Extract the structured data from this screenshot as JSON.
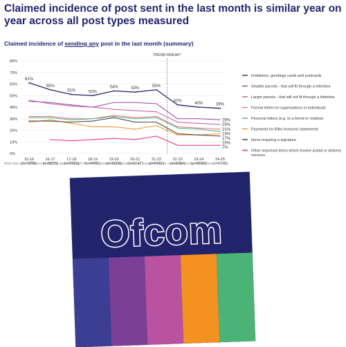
{
  "page_title": "Claimed incidence of post sent in the last month is similar year on year across all post types measured",
  "chart_subtitle": {
    "prefix": "Claimed incidence of ",
    "emphasis": "sending any",
    "suffix": " post in the last month (summary)"
  },
  "chart_data": {
    "type": "line",
    "title": "Claimed incidence of sending any post in the last month (summary)",
    "x": [
      "15-16",
      "16-17",
      "17-18",
      "18-19",
      "19-20",
      "20-21",
      "21-22",
      "22-23",
      "23-24",
      "24-25"
    ],
    "x_subs": [
      "(n=3205)",
      "(n=6015)",
      "(n=5861)",
      "(n=6981)",
      "(n=5006)",
      "(n=5147)",
      "(n=5161)",
      "(n=6664)",
      "(n=6160)",
      "(n=6168)"
    ],
    "ylim": [
      0,
      80
    ],
    "yticks": [
      "0%",
      "10%",
      "20%",
      "30%",
      "40%",
      "50%",
      "60%",
      "70%",
      "80%"
    ],
    "y_unit": "%",
    "grid": true,
    "legend_position": "right",
    "annotation": "TREND BREAK*",
    "trend_break_between": [
      "21-22",
      "22-23"
    ],
    "series": [
      {
        "name": "Invitations, greetings cards and postcards",
        "color": "#22246b",
        "values": [
          61,
          55,
          51,
          50,
          54,
          53,
          55,
          42,
          40,
          39
        ],
        "labels": [
          "61%",
          "55%",
          "51%",
          "50%",
          "54%",
          "53%",
          "55%",
          "42%",
          "40%",
          "39%"
        ]
      },
      {
        "name": "Smaller parcels - that will fit through a letterbox",
        "color": "#8e44ad",
        "values": [
          45,
          44,
          42,
          40,
          44,
          44,
          43,
          30,
          30,
          29
        ],
        "end_label": "29%"
      },
      {
        "name": "Larger parcels - that will not fit through a letterbox",
        "color": "#c2549d",
        "values": [
          46,
          43,
          41,
          40,
          38,
          37,
          36,
          27,
          26,
          25
        ],
        "end_label": "25%"
      },
      {
        "name": "Formal letters to organisations or individuals",
        "color": "#e57373",
        "values": [
          32,
          32,
          30,
          30,
          33,
          31,
          32,
          23,
          22,
          21
        ],
        "end_label": "21%"
      },
      {
        "name": "Personal letters (e.g. to a friend or relative)",
        "color": "#4caf8a",
        "values": [
          31,
          31,
          29,
          30,
          32,
          30,
          31,
          22,
          21,
          19
        ],
        "end_label": "19%"
      },
      {
        "name": "Payments for Bills/ invoices/ statements",
        "color": "#f5921e",
        "values": [
          27,
          29,
          26,
          23,
          23,
          21,
          24,
          16,
          16,
          17
        ],
        "end_label": "17%"
      },
      {
        "name": "Items requiring a signature",
        "color": "#3a3a3a",
        "values": [
          28,
          28,
          27,
          28,
          31,
          27,
          27,
          17,
          16,
          15
        ],
        "end_label": "15%"
      },
      {
        "name": "Other important items which involve postal or delivery services",
        "color": "#e9217c",
        "values": [
          null,
          12,
          11,
          12,
          13,
          12,
          15,
          7,
          7,
          7
        ],
        "end_label": "7%"
      }
    ],
    "note": "Note that drop off occurs during the period in which the questionnaire was restructured so may partially be caused by survey differences."
  },
  "logo": {
    "text": "Ofcom",
    "background": "#22246b",
    "stripes": [
      "#3b3e92",
      "#7b3f98",
      "#b9529f",
      "#f39221",
      "#4cb377"
    ]
  }
}
